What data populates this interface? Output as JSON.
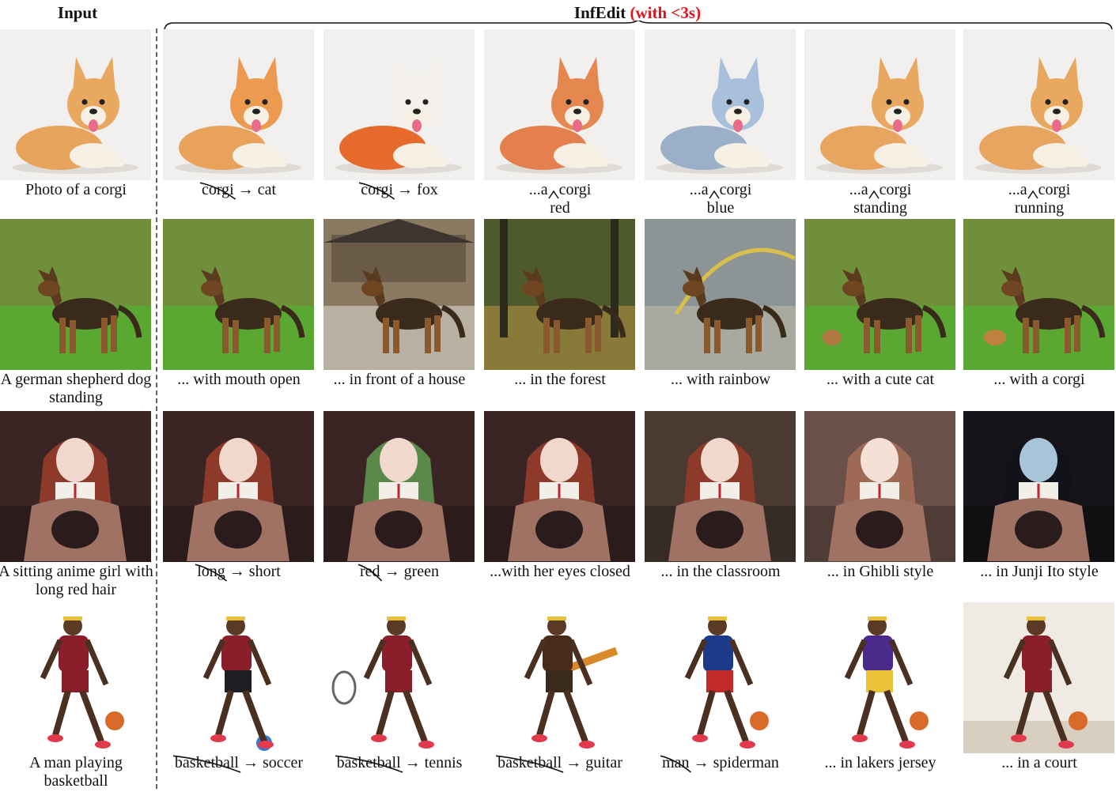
{
  "header": {
    "input_label": "Input",
    "method": "InfEdit",
    "speed": "(with <3s)"
  },
  "colors": {
    "accent": "#e0141c",
    "divider": "#666666"
  },
  "rows": [
    {
      "input_caption": "Photo of a corgi",
      "edits": [
        {
          "type": "replace",
          "old": "corgi",
          "new": "cat"
        },
        {
          "type": "replace",
          "old": "corgi",
          "new": "fox"
        },
        {
          "type": "insert",
          "prefix": "...a",
          "word": "corgi",
          "added": "red"
        },
        {
          "type": "insert",
          "prefix": "...a",
          "word": "corgi",
          "added": "blue"
        },
        {
          "type": "insert",
          "prefix": "...a",
          "word": "corgi",
          "added": "standing"
        },
        {
          "type": "insert",
          "prefix": "...a",
          "word": "corgi",
          "added": "running"
        }
      ]
    },
    {
      "input_caption": "A german shepherd dog standing",
      "edits": [
        {
          "type": "append",
          "text": "... with mouth open"
        },
        {
          "type": "append",
          "text": "... in front of a house"
        },
        {
          "type": "append",
          "text": "... in the forest"
        },
        {
          "type": "append",
          "text": "... with rainbow"
        },
        {
          "type": "append",
          "text": "... with a cute cat"
        },
        {
          "type": "append",
          "text": "... with a corgi"
        }
      ]
    },
    {
      "input_caption": "A sitting anime girl with long red hair",
      "edits": [
        {
          "type": "replace",
          "old": "long",
          "new": "short"
        },
        {
          "type": "replace",
          "old": "red",
          "new": "green"
        },
        {
          "type": "append",
          "text": "...with her eyes closed"
        },
        {
          "type": "append",
          "text": "... in the classroom"
        },
        {
          "type": "append",
          "text": "... in Ghibli style"
        },
        {
          "type": "append",
          "text": "... in Junji Ito style"
        }
      ]
    },
    {
      "input_caption": "A man playing basketball",
      "edits": [
        {
          "type": "replace",
          "old": "basketball",
          "new": "soccer"
        },
        {
          "type": "replace",
          "old": "basketball",
          "new": "tennis"
        },
        {
          "type": "replace",
          "old": "basketball",
          "new": "guitar"
        },
        {
          "type": "replace",
          "old": "man",
          "new": "spiderman"
        },
        {
          "type": "append",
          "text": "... in lakers jersey"
        },
        {
          "type": "append",
          "text": "... in a court"
        }
      ]
    }
  ]
}
